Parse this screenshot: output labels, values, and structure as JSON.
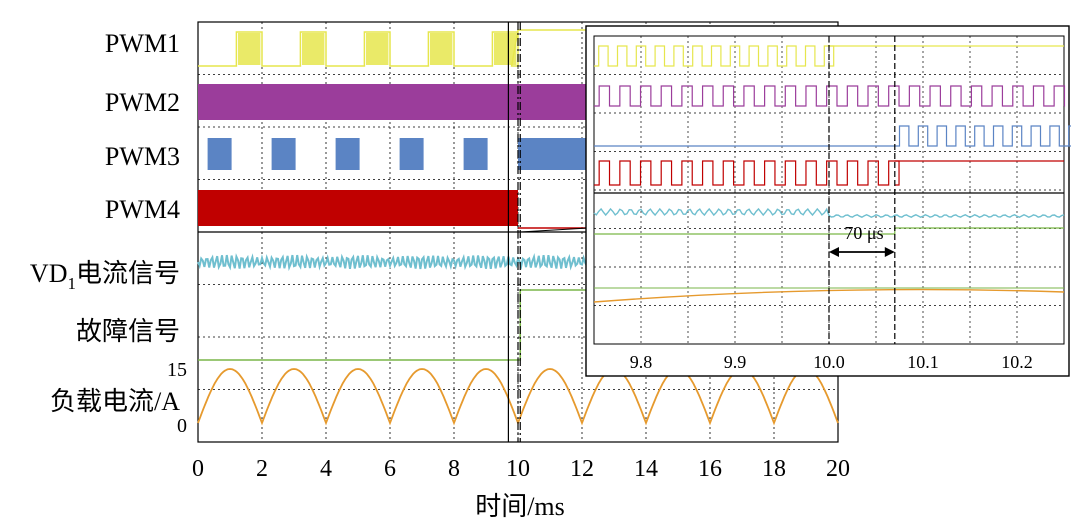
{
  "chart_data": {
    "type": "line",
    "title": "",
    "xlabel": "时间/ms",
    "xlim": [
      0,
      20
    ],
    "x_ticks": [
      "0",
      "2",
      "4",
      "6",
      "8",
      "10",
      "12",
      "14",
      "16",
      "18",
      "20"
    ],
    "channel_labels": {
      "pwm1": "PWM1",
      "pwm2": "PWM2",
      "pwm3": "PWM3",
      "pwm4": "PWM4",
      "vd1_main": "VD",
      "vd1_sub": "1",
      "vd1_rest": "电流信号",
      "fault": "故障信号",
      "load": "负载电流/A"
    },
    "load_axis": {
      "ylim": [
        0,
        15
      ],
      "ticks": [
        "15",
        "0"
      ]
    },
    "series": [
      {
        "name": "PWM1",
        "color": "#e6e64d",
        "pattern": "burst",
        "period_ms": 2.0,
        "on_until_ms": 9.8
      },
      {
        "name": "PWM2",
        "color": "#9b3d9b",
        "pattern": "dense",
        "end_ms": 20
      },
      {
        "name": "PWM3",
        "color": "#5b84c4",
        "pattern": "burst",
        "period_ms": 2.0,
        "after_fault": "dense"
      },
      {
        "name": "PWM4",
        "color": "#c00000",
        "pattern": "dense",
        "end_ms": 10.0
      },
      {
        "name": "VD1电流信号",
        "color": "#6fbfcf",
        "pattern": "ripple",
        "period_ms": 2.0
      },
      {
        "name": "故障信号",
        "color": "#7ab648",
        "low_value": 0,
        "high_value": 1,
        "step_ms": 10.07
      },
      {
        "name": "负载电流/A",
        "color": "#e69a2e",
        "pattern": "rectified_sine",
        "period_ms": 2.0,
        "amplitude_a": 15
      }
    ],
    "markers_ms": [
      9.7,
      10.0,
      10.07
    ],
    "inset": {
      "xlim": [
        9.75,
        10.25
      ],
      "x_ticks": [
        "9.8",
        "9.9",
        "10.0",
        "10.1",
        "10.2"
      ],
      "annotation": "70 μs",
      "annotation_start_ms": 10.0,
      "annotation_end_ms": 10.07
    }
  }
}
